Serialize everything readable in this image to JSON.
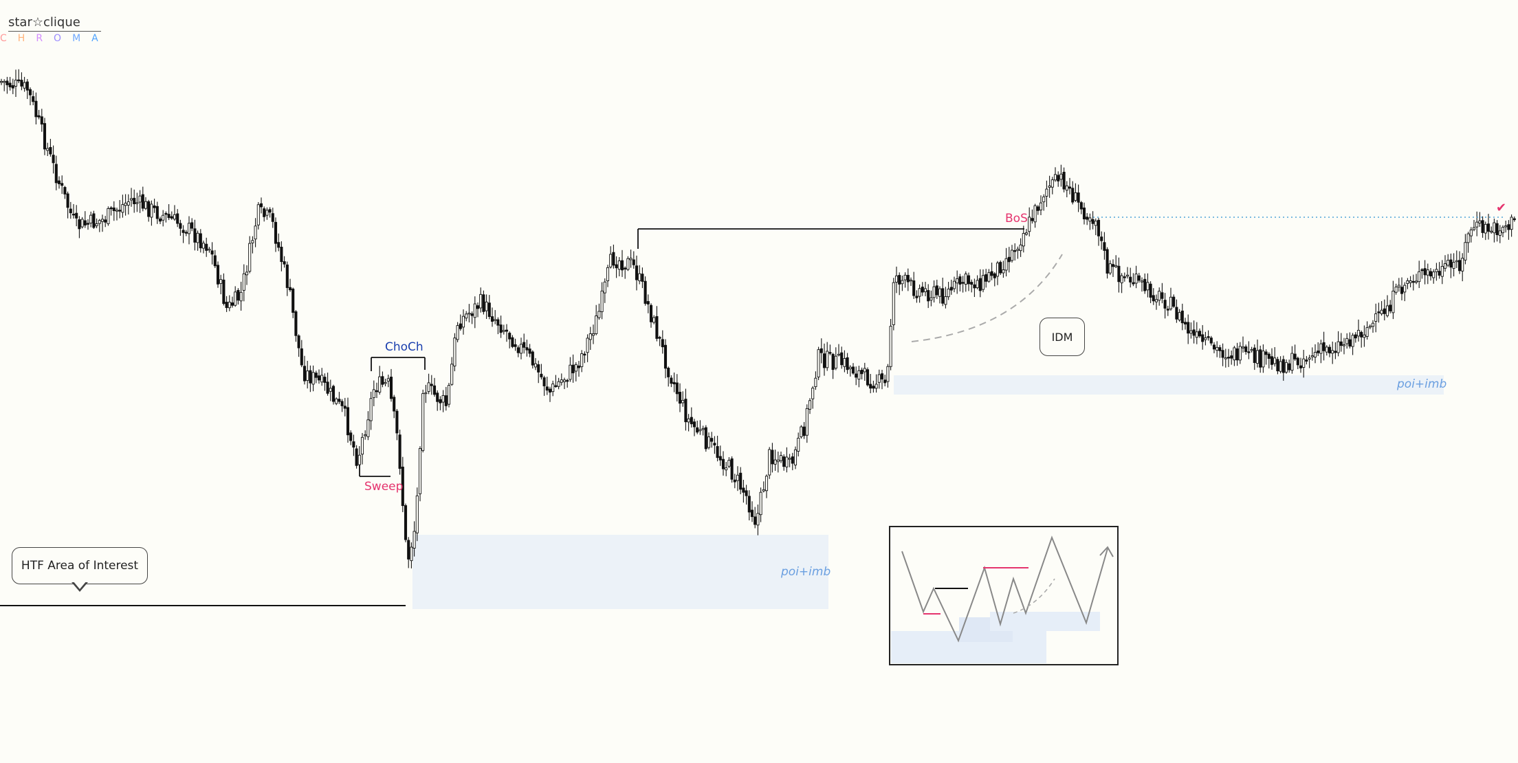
{
  "logo": {
    "brand": "star☆clique",
    "sub": [
      "C",
      "H",
      "R",
      "O",
      "M",
      "A"
    ]
  },
  "labels": {
    "choch": "ChoCh",
    "sweep": "Sweep",
    "bos": "BoS",
    "poi_lower": "poi+imb",
    "poi_upper": "poi+imb",
    "check": "✔"
  },
  "callouts": {
    "htf": "HTF Area of Interest",
    "idm": "IDM"
  },
  "colors": {
    "background": "#fdfdf8",
    "candle": "#111111",
    "zone": "#e6eef8",
    "bos_red": "#e5336d",
    "choch_blue": "#1a3fae",
    "poi_blue": "#6a9fe0",
    "dotted_level": "#4fa3d8"
  },
  "chart_data": {
    "type": "candlestick",
    "title": "",
    "xlabel": "",
    "ylabel": "",
    "grid": false,
    "axes_shown": false,
    "price_path_anchors": [
      [
        0,
        118
      ],
      [
        40,
        130
      ],
      [
        80,
        250
      ],
      [
        110,
        330
      ],
      [
        150,
        320
      ],
      [
        190,
        290
      ],
      [
        230,
        310
      ],
      [
        270,
        330
      ],
      [
        305,
        360
      ],
      [
        330,
        450
      ],
      [
        350,
        430
      ],
      [
        375,
        310
      ],
      [
        395,
        320
      ],
      [
        420,
        420
      ],
      [
        440,
        540
      ],
      [
        470,
        560
      ],
      [
        500,
        600
      ],
      [
        520,
        670
      ],
      [
        545,
        560
      ],
      [
        565,
        560
      ],
      [
        580,
        650
      ],
      [
        592,
        820
      ],
      [
        605,
        760
      ],
      [
        615,
        560
      ],
      [
        650,
        590
      ],
      [
        665,
        470
      ],
      [
        700,
        440
      ],
      [
        735,
        480
      ],
      [
        770,
        520
      ],
      [
        800,
        570
      ],
      [
        840,
        530
      ],
      [
        870,
        460
      ],
      [
        890,
        375
      ],
      [
        920,
        385
      ],
      [
        935,
        420
      ],
      [
        970,
        530
      ],
      [
        1000,
        610
      ],
      [
        1035,
        650
      ],
      [
        1060,
        680
      ],
      [
        1085,
        720
      ],
      [
        1100,
        760
      ],
      [
        1120,
        660
      ],
      [
        1150,
        680
      ],
      [
        1170,
        620
      ],
      [
        1190,
        520
      ],
      [
        1230,
        530
      ],
      [
        1260,
        550
      ],
      [
        1290,
        560
      ],
      [
        1300,
        400
      ],
      [
        1330,
        420
      ],
      [
        1370,
        430
      ],
      [
        1400,
        410
      ],
      [
        1430,
        410
      ],
      [
        1470,
        370
      ],
      [
        1500,
        320
      ],
      [
        1520,
        275
      ],
      [
        1545,
        260
      ],
      [
        1570,
        300
      ],
      [
        1595,
        320
      ],
      [
        1610,
        390
      ],
      [
        1650,
        410
      ],
      [
        1700,
        440
      ],
      [
        1735,
        490
      ],
      [
        1770,
        510
      ],
      [
        1820,
        520
      ],
      [
        1870,
        530
      ],
      [
        1900,
        520
      ],
      [
        1950,
        500
      ],
      [
        2000,
        470
      ],
      [
        2050,
        405
      ],
      [
        2100,
        395
      ],
      [
        2125,
        380
      ],
      [
        2140,
        330
      ],
      [
        2170,
        335
      ],
      [
        2200,
        325
      ]
    ],
    "zones": [
      {
        "label": "poi+imb",
        "x0": 600,
        "x1": 1205,
        "y0": 778,
        "y1": 886
      },
      {
        "label": "poi+imb",
        "x0": 1300,
        "x1": 2100,
        "y0": 546,
        "y1": 574
      }
    ],
    "levels": [
      {
        "name": "htf",
        "x0": 0,
        "x1": 590,
        "y": 881
      },
      {
        "name": "bos",
        "x0": 928,
        "x1": 1490,
        "y": 333
      },
      {
        "name": "choch",
        "x0": 540,
        "x1": 618,
        "y": 520
      },
      {
        "name": "sweep",
        "x0": 523,
        "x1": 568,
        "y": 693
      },
      {
        "name": "target",
        "x0": 1590,
        "x1": 2190,
        "y": 316
      }
    ]
  }
}
